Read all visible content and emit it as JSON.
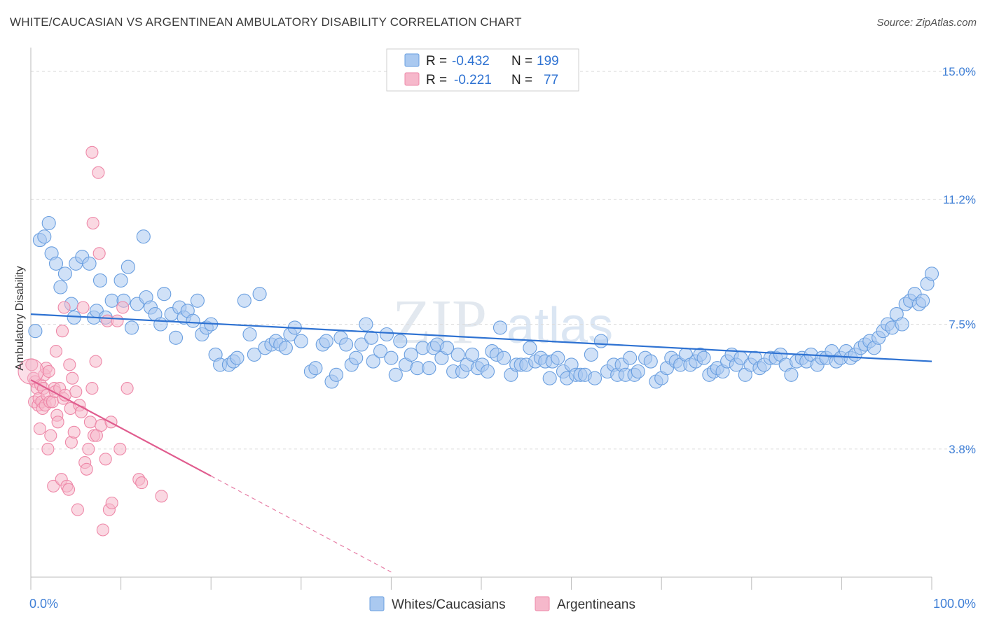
{
  "title": "WHITE/CAUCASIAN VS ARGENTINEAN AMBULATORY DISABILITY CORRELATION CHART",
  "source": "Source: ZipAtlas.com",
  "watermark": {
    "zip": "ZIP",
    "atlas": "atlas"
  },
  "chart_data": {
    "type": "scatter",
    "title": "WHITE/CAUCASIAN VS ARGENTINEAN AMBULATORY DISABILITY CORRELATION CHART",
    "xlabel": "",
    "ylabel": "Ambulatory Disability",
    "xlim": [
      0,
      100
    ],
    "ylim": [
      0,
      15.5
    ],
    "x_tick_labels": [
      {
        "value": 0,
        "label": "0.0%"
      },
      {
        "value": 100,
        "label": "100.0%"
      }
    ],
    "y_tick_labels": [
      {
        "value": 3.8,
        "label": "3.8%"
      },
      {
        "value": 7.5,
        "label": "7.5%"
      },
      {
        "value": 11.2,
        "label": "11.2%"
      },
      {
        "value": 15.0,
        "label": "15.0%"
      }
    ],
    "x_minor_ticks": [
      0,
      10,
      20,
      30,
      40,
      50,
      60,
      70,
      80,
      90,
      100
    ],
    "grid": true,
    "legend": {
      "placement": "top-center",
      "entries": [
        {
          "swatch": "#aac9f0",
          "r_label": "R =",
          "r_value": "-0.432",
          "n_label": "N =",
          "n_value": "199"
        },
        {
          "swatch": "#f6b8cb",
          "r_label": "R =",
          "r_value": "-0.221",
          "n_label": "N =",
          "n_value": "77"
        }
      ]
    },
    "bottom_legend": [
      "Whites/Caucasians",
      "Argentineans"
    ],
    "series": [
      {
        "name": "Whites/Caucasians",
        "fill": "#aac9f0",
        "stroke": "#6a9fe0",
        "trend_color": "#2e72d2",
        "trend": {
          "x0": 0,
          "y0": 7.8,
          "x1": 100,
          "y1": 6.4
        },
        "points": [
          [
            0.5,
            7.3
          ],
          [
            1,
            10
          ],
          [
            1.5,
            10.1
          ],
          [
            2,
            10.5
          ],
          [
            2.3,
            9.6
          ],
          [
            2.8,
            9.3
          ],
          [
            3.3,
            8.6
          ],
          [
            3.8,
            9.0
          ],
          [
            4.5,
            8.1
          ],
          [
            4.8,
            7.7
          ],
          [
            5,
            9.3
          ],
          [
            5.7,
            9.5
          ],
          [
            6.5,
            9.3
          ],
          [
            7,
            7.7
          ],
          [
            7.3,
            7.9
          ],
          [
            7.7,
            8.8
          ],
          [
            8.3,
            7.7
          ],
          [
            9,
            8.2
          ],
          [
            10,
            8.8
          ],
          [
            10.3,
            8.2
          ],
          [
            10.8,
            9.2
          ],
          [
            11.2,
            7.4
          ],
          [
            11.8,
            8.1
          ],
          [
            12.5,
            10.1
          ],
          [
            12.8,
            8.3
          ],
          [
            13.3,
            8.0
          ],
          [
            13.8,
            7.8
          ],
          [
            14.4,
            7.5
          ],
          [
            14.8,
            8.4
          ],
          [
            15.6,
            7.8
          ],
          [
            16.1,
            7.1
          ],
          [
            16.5,
            8.0
          ],
          [
            17,
            7.7
          ],
          [
            17.4,
            7.9
          ],
          [
            18,
            7.6
          ],
          [
            18.5,
            8.2
          ],
          [
            19,
            7.2
          ],
          [
            19.5,
            7.4
          ],
          [
            20,
            7.5
          ],
          [
            20.5,
            6.6
          ],
          [
            21,
            6.3
          ],
          [
            22,
            6.3
          ],
          [
            22.5,
            6.4
          ],
          [
            22.9,
            6.5
          ],
          [
            23.7,
            8.2
          ],
          [
            24.3,
            7.2
          ],
          [
            24.8,
            6.6
          ],
          [
            25.4,
            8.4
          ],
          [
            26,
            6.8
          ],
          [
            26.7,
            6.9
          ],
          [
            27.2,
            7.0
          ],
          [
            27.7,
            6.9
          ],
          [
            28.3,
            6.8
          ],
          [
            28.8,
            7.2
          ],
          [
            29.3,
            7.4
          ],
          [
            30,
            7.0
          ],
          [
            31.1,
            6.1
          ],
          [
            31.6,
            6.2
          ],
          [
            32.4,
            6.9
          ],
          [
            32.8,
            7.0
          ],
          [
            33.4,
            5.8
          ],
          [
            33.9,
            6.0
          ],
          [
            34.4,
            7.1
          ],
          [
            35,
            6.9
          ],
          [
            35.6,
            6.3
          ],
          [
            36.1,
            6.5
          ],
          [
            36.7,
            6.9
          ],
          [
            37.2,
            7.5
          ],
          [
            37.8,
            7.1
          ],
          [
            38,
            6.4
          ],
          [
            38.8,
            6.7
          ],
          [
            39.5,
            7.2
          ],
          [
            40,
            6.5
          ],
          [
            40.5,
            6.0
          ],
          [
            41,
            7.0
          ],
          [
            41.6,
            6.3
          ],
          [
            42.2,
            6.6
          ],
          [
            42.9,
            6.2
          ],
          [
            43.5,
            6.8
          ],
          [
            44.2,
            6.2
          ],
          [
            44.7,
            6.8
          ],
          [
            45.1,
            6.9
          ],
          [
            45.6,
            6.5
          ],
          [
            46.2,
            6.8
          ],
          [
            46.9,
            6.1
          ],
          [
            47.4,
            6.6
          ],
          [
            47.9,
            6.1
          ],
          [
            48.4,
            6.3
          ],
          [
            49,
            6.6
          ],
          [
            49.6,
            6.2
          ],
          [
            50.1,
            6.3
          ],
          [
            50.7,
            6.1
          ],
          [
            51.2,
            6.7
          ],
          [
            51.7,
            6.6
          ],
          [
            52.1,
            7.4
          ],
          [
            52.5,
            6.5
          ],
          [
            53.3,
            6.0
          ],
          [
            53.9,
            6.3
          ],
          [
            54.4,
            6.3
          ],
          [
            55,
            6.3
          ],
          [
            55.4,
            6.8
          ],
          [
            56,
            6.4
          ],
          [
            56.6,
            6.5
          ],
          [
            57.1,
            6.4
          ],
          [
            57.6,
            5.9
          ],
          [
            57.9,
            6.4
          ],
          [
            58.5,
            6.5
          ],
          [
            59.1,
            6.1
          ],
          [
            59.5,
            5.9
          ],
          [
            60,
            6.3
          ],
          [
            60.5,
            6.0
          ],
          [
            61,
            6.0
          ],
          [
            61.5,
            6.0
          ],
          [
            62.2,
            6.6
          ],
          [
            62.6,
            5.9
          ],
          [
            63.3,
            7.0
          ],
          [
            64,
            6.1
          ],
          [
            64.7,
            6.3
          ],
          [
            65.1,
            6.0
          ],
          [
            65.6,
            6.3
          ],
          [
            66,
            6.0
          ],
          [
            66.5,
            6.5
          ],
          [
            67,
            6.0
          ],
          [
            67.4,
            6.1
          ],
          [
            68.2,
            6.5
          ],
          [
            68.8,
            6.4
          ],
          [
            69.4,
            5.8
          ],
          [
            70,
            5.9
          ],
          [
            70.6,
            6.2
          ],
          [
            71.1,
            6.5
          ],
          [
            71.6,
            6.4
          ],
          [
            72.1,
            6.3
          ],
          [
            72.7,
            6.6
          ],
          [
            73.2,
            6.3
          ],
          [
            73.8,
            6.4
          ],
          [
            74.3,
            6.6
          ],
          [
            74.7,
            6.5
          ],
          [
            75.3,
            6.0
          ],
          [
            75.8,
            6.1
          ],
          [
            76.2,
            6.2
          ],
          [
            76.8,
            6.1
          ],
          [
            77.3,
            6.4
          ],
          [
            77.8,
            6.6
          ],
          [
            78.3,
            6.3
          ],
          [
            78.8,
            6.5
          ],
          [
            79.3,
            6.0
          ],
          [
            79.9,
            6.3
          ],
          [
            80.4,
            6.5
          ],
          [
            80.9,
            6.2
          ],
          [
            81.4,
            6.3
          ],
          [
            82.1,
            6.5
          ],
          [
            82.7,
            6.5
          ],
          [
            83.2,
            6.6
          ],
          [
            83.8,
            6.3
          ],
          [
            84.4,
            6.0
          ],
          [
            85,
            6.4
          ],
          [
            85.6,
            6.5
          ],
          [
            86.1,
            6.4
          ],
          [
            86.6,
            6.6
          ],
          [
            87.3,
            6.3
          ],
          [
            87.8,
            6.5
          ],
          [
            88.3,
            6.5
          ],
          [
            88.9,
            6.7
          ],
          [
            89.4,
            6.4
          ],
          [
            89.9,
            6.5
          ],
          [
            90.5,
            6.7
          ],
          [
            91,
            6.5
          ],
          [
            91.5,
            6.6
          ],
          [
            92.1,
            6.8
          ],
          [
            92.6,
            6.9
          ],
          [
            93.1,
            7.0
          ],
          [
            93.6,
            6.8
          ],
          [
            94.1,
            7.1
          ],
          [
            94.6,
            7.3
          ],
          [
            95.1,
            7.5
          ],
          [
            95.6,
            7.4
          ],
          [
            96.1,
            7.8
          ],
          [
            96.7,
            7.5
          ],
          [
            97.1,
            8.1
          ],
          [
            97.6,
            8.2
          ],
          [
            98.1,
            8.4
          ],
          [
            98.6,
            8.1
          ],
          [
            99.0,
            8.2
          ],
          [
            99.5,
            8.7
          ],
          [
            100,
            9.0
          ]
        ]
      },
      {
        "name": "Argentineans",
        "fill": "#f6b8cb",
        "stroke": "#ee88a8",
        "trend_color": "#e05c8e",
        "trend": {
          "x0": 0,
          "y0": 5.85,
          "x1": 20,
          "y1": 3.0
        },
        "trend_dashed_to": {
          "x": 40,
          "y": 0.15
        },
        "points": [
          [
            0.1,
            6.3
          ],
          [
            0.3,
            5.9
          ],
          [
            0.4,
            5.2
          ],
          [
            0.5,
            5.8
          ],
          [
            0.7,
            5.6
          ],
          [
            0.8,
            5.1
          ],
          [
            0.9,
            5.3
          ],
          [
            1,
            4.4
          ],
          [
            1.1,
            5.7
          ],
          [
            1.2,
            5.2
          ],
          [
            1.3,
            5.0
          ],
          [
            1.4,
            5.6
          ],
          [
            1.5,
            6.0
          ],
          [
            1.6,
            5.1
          ],
          [
            1.7,
            6.2
          ],
          [
            1.8,
            5.4
          ],
          [
            1.9,
            3.8
          ],
          [
            2,
            6.1
          ],
          [
            2.1,
            5.2
          ],
          [
            2.2,
            4.2
          ],
          [
            2.4,
            5.2
          ],
          [
            2.5,
            2.7
          ],
          [
            2.6,
            5.6
          ],
          [
            2.7,
            5.5
          ],
          [
            2.8,
            6.7
          ],
          [
            2.9,
            4.8
          ],
          [
            3,
            4.6
          ],
          [
            3.2,
            5.6
          ],
          [
            3.4,
            2.9
          ],
          [
            3.5,
            7.3
          ],
          [
            3.6,
            5.3
          ],
          [
            3.7,
            8.0
          ],
          [
            3.8,
            5.4
          ],
          [
            4,
            2.7
          ],
          [
            4.2,
            2.6
          ],
          [
            4.3,
            6.3
          ],
          [
            4.4,
            5.0
          ],
          [
            4.5,
            4.0
          ],
          [
            4.6,
            5.9
          ],
          [
            4.8,
            4.3
          ],
          [
            5,
            5.5
          ],
          [
            5.2,
            2.0
          ],
          [
            5.4,
            5.1
          ],
          [
            5.6,
            4.9
          ],
          [
            5.8,
            8.0
          ],
          [
            6,
            3.4
          ],
          [
            6.2,
            3.2
          ],
          [
            6.4,
            3.8
          ],
          [
            6.6,
            4.6
          ],
          [
            6.8,
            5.6
          ],
          [
            7,
            4.2
          ],
          [
            7.2,
            6.4
          ],
          [
            7.3,
            4.2
          ],
          [
            7.5,
            12.0
          ],
          [
            7.6,
            9.6
          ],
          [
            7.8,
            4.5
          ],
          [
            8,
            1.4
          ],
          [
            8.3,
            3.5
          ],
          [
            8.5,
            7.6
          ],
          [
            8.7,
            2.0
          ],
          [
            8.9,
            4.6
          ],
          [
            9.0,
            2.2
          ],
          [
            9.6,
            7.6
          ],
          [
            9.9,
            3.8
          ],
          [
            10.2,
            8.0
          ],
          [
            6.9,
            10.5
          ],
          [
            6.8,
            12.6
          ],
          [
            10.7,
            5.6
          ],
          [
            12,
            2.9
          ],
          [
            12.3,
            2.8
          ],
          [
            14.5,
            2.4
          ]
        ]
      }
    ]
  }
}
